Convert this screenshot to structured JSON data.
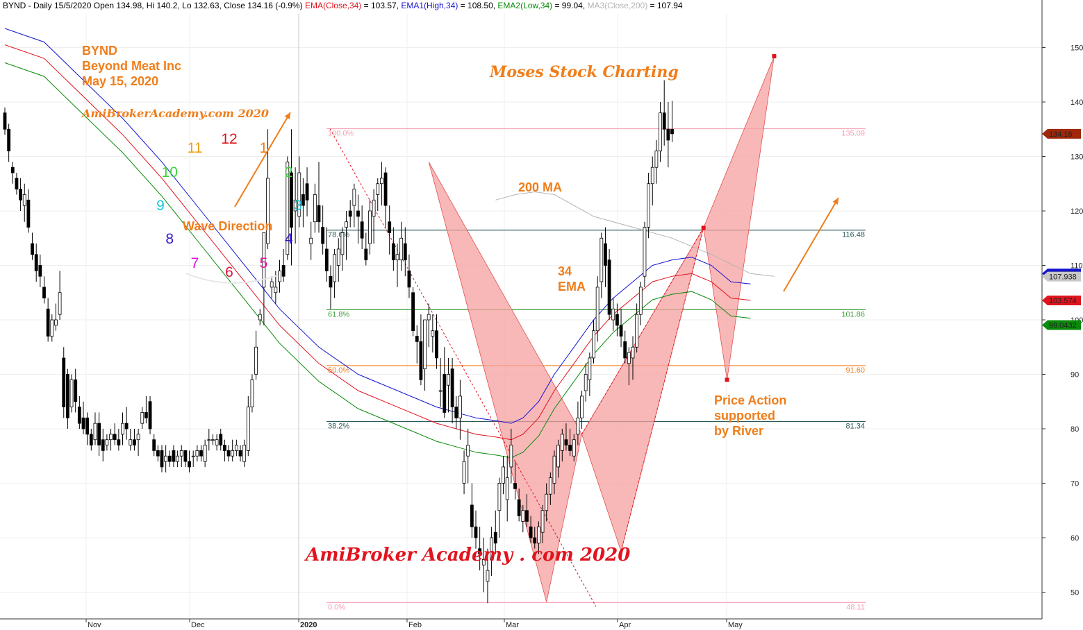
{
  "header": {
    "parts": [
      {
        "text": "BYND - Daily 15/5/2020 Open 134.98, Hi 140.2, Lo 132.63, Close 134.16 (-0.9%) ",
        "color": "#000000"
      },
      {
        "text": "EMA(Close,34)",
        "color": "#e0141e"
      },
      {
        "text": " = 103.57, ",
        "color": "#000000"
      },
      {
        "text": "EMA1(High,34)",
        "color": "#1414d2"
      },
      {
        "text": " = 108.50, ",
        "color": "#000000"
      },
      {
        "text": "EMA2(Low,34)",
        "color": "#0a8a0a"
      },
      {
        "text": " = 99.04, ",
        "color": "#000000"
      },
      {
        "text": "MA3(Close,200)",
        "color": "#b4b4b4"
      },
      {
        "text": " = 107.94",
        "color": "#000000"
      }
    ]
  },
  "annotations": {
    "ticker": "BYND",
    "company": "Beyond Meat Inc",
    "date": "May 15, 2020",
    "watermark_top": "AmiBrokerAcademy.com 2020",
    "brand": "Moses Stock Charting",
    "ma200": "200 MA",
    "ema34_line1": "34",
    "ema34_line2": "EMA",
    "wave_direction": "Wave Direction",
    "price_action_1": "Price Action",
    "price_action_2": "supported",
    "price_action_3": "by River",
    "watermark_bottom": "AmiBroker Academy . com  2020"
  },
  "clock": {
    "numbers": [
      {
        "n": "12",
        "color": "#e0141e"
      },
      {
        "n": "1",
        "color": "#f07d1a"
      },
      {
        "n": "2",
        "color": "#3cd23c"
      },
      {
        "n": "3",
        "color": "#14c8dc"
      },
      {
        "n": "4",
        "color": "#3214c8"
      },
      {
        "n": "5",
        "color": "#e614a0"
      },
      {
        "n": "6",
        "color": "#e0143c"
      },
      {
        "n": "7",
        "color": "#dc14dc"
      },
      {
        "n": "8",
        "color": "#3214c8"
      },
      {
        "n": "9",
        "color": "#14c8dc"
      },
      {
        "n": "10",
        "color": "#3cd23c"
      },
      {
        "n": "11",
        "color": "#f0a014"
      }
    ]
  },
  "colors": {
    "ema_close": "#e0141e",
    "ema_high": "#1414d2",
    "ema_low": "#0a8a0a",
    "ma200": "#b4b4b4",
    "pattern_fill": "#f5a0a0",
    "annotation": "#f07d1a",
    "candle_up": "#ffffff",
    "candle_down": "#000000",
    "fib_pink": "#f5a0b4",
    "fib_orange": "#f07d1a",
    "fib_green": "#3ca03c",
    "fib_teal": "#2d5a5a"
  },
  "chart_data": {
    "type": "candlestick",
    "title": "BYND - Daily 15/5/2020",
    "ylim": [
      45,
      155
    ],
    "y_ticks": [
      50,
      60,
      70,
      80,
      90,
      100,
      110,
      120,
      130,
      140,
      150
    ],
    "x_ticks": [
      "Nov",
      "Dec",
      "2020",
      "Feb",
      "Mar",
      "Apr",
      "May"
    ],
    "price_tags": [
      {
        "label": "134.16",
        "value": 134.16,
        "bg": "#a0280a",
        "fg": "#ffffff"
      },
      {
        "label": "108.502",
        "value": 108.502,
        "bg": "#1414d2",
        "fg": "#ffffff"
      },
      {
        "label": "107.938",
        "value": 107.938,
        "bg": "#c8c8c8",
        "fg": "#000000"
      },
      {
        "label": "103.574",
        "value": 103.574,
        "bg": "#e0141e",
        "fg": "#000000"
      },
      {
        "label": "99.0432",
        "value": 99.0432,
        "bg": "#0a8a0a",
        "fg": "#ffffff"
      }
    ],
    "fib_levels": [
      {
        "pct": "100.0%",
        "value": 135.09,
        "label": "135.09",
        "color": "#f5a0b4"
      },
      {
        "pct": "78.6%",
        "value": 116.48,
        "label": "116.48",
        "color": "#2d5a5a"
      },
      {
        "pct": "61.8%",
        "value": 101.86,
        "label": "101.86",
        "color": "#3ca03c"
      },
      {
        "pct": "50.0%",
        "value": 91.6,
        "label": "91.60",
        "color": "#f07d1a"
      },
      {
        "pct": "38.2%",
        "value": 81.34,
        "label": "81.34",
        "color": "#2d5a5a"
      },
      {
        "pct": "0.0%",
        "value": 48.11,
        "label": "48.11",
        "color": "#f5a0b4"
      }
    ],
    "pattern_points": [
      {
        "bar": 108,
        "price": 129
      },
      {
        "bar": 138,
        "price": 48.2
      },
      {
        "bar": 147,
        "price": 79
      },
      {
        "bar": 157,
        "price": 57.5
      },
      {
        "bar": 178,
        "price": 116.9
      },
      {
        "bar": 184,
        "price": 89
      },
      {
        "bar": 196,
        "price": 148.4
      }
    ],
    "candles": [
      [
        138,
        139,
        134,
        135
      ],
      [
        135,
        136,
        129,
        131
      ],
      [
        128,
        129,
        125,
        127
      ],
      [
        126,
        127,
        123,
        124
      ],
      [
        124,
        126,
        120,
        122
      ],
      [
        121,
        125,
        118,
        123
      ],
      [
        122,
        124,
        116,
        117
      ],
      [
        114,
        116,
        111,
        112
      ],
      [
        112,
        114,
        107,
        109
      ],
      [
        110,
        112,
        106,
        108
      ],
      [
        106,
        108,
        103,
        104
      ],
      [
        102,
        104,
        96,
        97
      ],
      [
        97,
        101,
        96,
        100
      ],
      [
        99,
        103,
        98,
        100
      ],
      [
        101,
        109,
        100,
        105
      ],
      [
        93,
        95,
        82,
        84
      ],
      [
        90,
        91,
        80,
        82
      ],
      [
        84,
        90,
        83,
        89
      ],
      [
        89,
        91,
        83,
        85
      ],
      [
        84,
        86,
        80,
        81
      ],
      [
        82,
        85,
        79,
        80
      ],
      [
        82,
        83,
        77,
        79
      ],
      [
        79,
        80,
        76,
        77
      ],
      [
        78,
        83,
        77,
        81
      ],
      [
        81,
        83,
        75,
        77
      ],
      [
        78,
        80,
        74,
        76
      ],
      [
        77,
        79,
        76,
        78
      ],
      [
        78,
        80,
        76,
        79
      ],
      [
        79,
        81,
        77,
        78
      ],
      [
        78,
        80,
        76,
        77
      ],
      [
        79,
        83,
        77,
        81
      ],
      [
        81,
        84,
        78,
        80
      ],
      [
        77,
        80,
        76,
        78
      ],
      [
        78,
        80,
        76,
        77
      ],
      [
        78,
        80,
        75,
        79
      ],
      [
        81,
        84,
        80,
        83
      ],
      [
        83,
        86,
        81,
        82
      ],
      [
        85,
        86,
        79,
        80
      ],
      [
        78,
        79,
        75,
        76
      ],
      [
        76,
        77,
        74,
        75
      ],
      [
        76,
        77,
        72,
        73
      ],
      [
        74,
        77,
        72,
        75
      ],
      [
        75,
        76,
        73,
        74
      ],
      [
        76,
        77,
        73,
        74
      ],
      [
        74,
        76,
        73,
        75
      ],
      [
        75,
        77,
        73,
        76
      ],
      [
        76,
        76,
        73,
        74
      ],
      [
        74,
        76,
        72,
        73
      ],
      [
        75,
        76,
        73,
        75
      ],
      [
        75,
        77,
        74,
        76
      ],
      [
        76,
        77,
        74,
        75
      ],
      [
        74,
        78,
        73,
        77
      ],
      [
        78,
        80,
        76,
        78
      ],
      [
        78,
        79,
        77,
        78
      ],
      [
        77,
        79,
        76,
        78
      ],
      [
        79,
        80,
        76,
        77
      ],
      [
        77,
        78,
        74,
        76
      ],
      [
        76,
        77,
        74,
        75
      ],
      [
        75,
        78,
        74,
        76
      ],
      [
        76,
        78,
        75,
        77
      ],
      [
        76,
        77,
        74,
        75
      ],
      [
        74,
        78,
        73,
        77
      ],
      [
        76,
        86,
        75,
        84
      ],
      [
        84,
        90,
        83,
        89
      ],
      [
        90,
        98,
        89,
        95
      ],
      [
        100,
        102,
        99,
        101
      ],
      [
        106,
        115,
        99,
        116
      ],
      [
        114,
        135,
        113,
        126
      ],
      [
        106,
        108,
        104,
        107
      ],
      [
        105,
        109,
        103,
        106
      ],
      [
        107,
        111,
        105,
        109
      ],
      [
        110,
        113,
        107,
        108
      ],
      [
        112,
        130,
        111,
        129
      ],
      [
        127,
        135,
        110,
        117
      ],
      [
        120,
        128,
        114,
        122
      ],
      [
        119,
        130,
        117,
        127
      ],
      [
        123,
        126,
        117,
        121
      ],
      [
        125,
        128,
        119,
        122
      ],
      [
        114,
        118,
        111,
        115
      ],
      [
        118,
        125,
        116,
        123
      ],
      [
        121,
        129,
        116,
        118
      ],
      [
        117,
        121,
        112,
        114
      ],
      [
        113,
        117,
        107,
        109
      ],
      [
        108,
        110,
        102,
        106
      ],
      [
        107,
        113,
        104,
        112
      ],
      [
        110,
        115,
        107,
        113
      ],
      [
        112,
        117,
        109,
        116
      ],
      [
        117,
        120,
        111,
        118
      ],
      [
        120,
        122,
        117,
        119
      ],
      [
        121,
        125,
        117,
        124
      ],
      [
        120,
        123,
        114,
        119
      ],
      [
        118,
        121,
        113,
        115
      ],
      [
        113,
        116,
        110,
        111
      ],
      [
        114,
        122,
        112,
        120
      ],
      [
        119,
        124,
        114,
        122
      ],
      [
        123,
        126,
        120,
        125
      ],
      [
        125,
        129,
        121,
        126
      ],
      [
        127,
        128,
        117,
        121
      ],
      [
        118,
        121,
        112,
        116
      ],
      [
        114,
        117,
        109,
        111
      ],
      [
        111,
        114,
        106,
        112
      ],
      [
        111,
        118,
        109,
        115
      ],
      [
        114,
        117,
        108,
        111
      ],
      [
        109,
        112,
        104,
        106
      ],
      [
        105,
        106,
        97,
        98
      ],
      [
        97,
        99,
        92,
        96
      ],
      [
        96,
        101,
        88,
        89
      ],
      [
        91,
        99,
        87,
        100
      ],
      [
        100,
        103,
        95,
        101
      ],
      [
        97,
        101,
        94,
        98
      ],
      [
        98,
        101,
        91,
        93
      ],
      [
        87,
        93,
        84,
        87
      ],
      [
        90,
        95,
        82,
        83
      ],
      [
        88,
        93,
        83,
        90
      ],
      [
        91,
        93,
        81,
        84
      ],
      [
        84,
        86,
        80,
        82
      ],
      [
        82,
        89,
        78,
        86
      ],
      [
        70,
        76,
        68,
        74
      ],
      [
        75,
        80,
        70,
        77
      ],
      [
        66,
        70,
        60,
        62
      ],
      [
        62,
        65,
        58,
        60
      ],
      [
        58,
        62,
        54,
        57
      ],
      [
        55,
        60,
        50,
        56
      ],
      [
        52,
        58,
        48,
        54
      ],
      [
        56,
        62,
        53,
        60
      ],
      [
        61,
        65,
        57,
        59
      ],
      [
        65,
        71,
        60,
        70
      ],
      [
        70,
        75,
        68,
        73
      ],
      [
        67,
        75,
        63,
        71
      ],
      [
        73,
        80,
        70,
        77
      ],
      [
        70,
        74,
        67,
        69
      ],
      [
        67,
        69,
        63,
        64
      ],
      [
        63,
        66,
        61,
        65
      ],
      [
        65,
        68,
        62,
        63
      ],
      [
        62,
        64,
        59,
        60
      ],
      [
        60,
        62,
        58,
        59
      ],
      [
        59,
        63,
        57,
        62
      ],
      [
        61,
        66,
        59,
        65
      ],
      [
        65,
        70,
        63,
        68
      ],
      [
        68,
        72,
        66,
        71
      ],
      [
        70,
        76,
        68,
        75
      ],
      [
        73,
        78,
        71,
        77
      ],
      [
        76,
        80,
        74,
        79
      ],
      [
        78,
        81,
        76,
        77
      ],
      [
        77,
        80,
        75,
        76
      ],
      [
        75,
        79,
        74,
        78
      ],
      [
        79,
        85,
        77,
        82
      ],
      [
        82,
        87,
        80,
        86
      ],
      [
        87,
        92,
        85,
        90
      ],
      [
        89,
        94,
        86,
        93
      ],
      [
        93,
        100,
        92,
        98
      ],
      [
        98,
        108,
        96,
        106
      ],
      [
        107,
        116,
        104,
        115
      ],
      [
        114,
        117,
        106,
        110
      ],
      [
        111,
        113,
        100,
        101
      ],
      [
        100,
        104,
        98,
        102
      ],
      [
        101,
        103,
        97,
        99
      ],
      [
        99,
        102,
        95,
        97
      ],
      [
        96,
        98,
        92,
        93
      ],
      [
        92,
        95,
        88,
        94
      ],
      [
        93,
        97,
        89,
        95
      ],
      [
        95,
        103,
        94,
        101
      ],
      [
        101,
        107,
        99,
        106
      ],
      [
        108,
        118,
        106,
        117
      ],
      [
        117,
        127,
        115,
        125
      ],
      [
        125,
        130,
        121,
        128
      ],
      [
        128,
        133,
        125,
        131
      ],
      [
        131,
        140,
        129,
        138
      ],
      [
        138,
        144,
        132,
        135
      ],
      [
        135,
        140,
        128,
        133
      ],
      [
        134.98,
        140.2,
        132.63,
        134.16
      ]
    ],
    "ema_close": [
      [
        0,
        150.5
      ],
      [
        10,
        148
      ],
      [
        20,
        141
      ],
      [
        30,
        134
      ],
      [
        40,
        126
      ],
      [
        50,
        117
      ],
      [
        60,
        108
      ],
      [
        70,
        99
      ],
      [
        80,
        92
      ],
      [
        90,
        87
      ],
      [
        100,
        84
      ],
      [
        110,
        81
      ],
      [
        120,
        79
      ],
      [
        125,
        78.5
      ],
      [
        129,
        78
      ],
      [
        132,
        79
      ],
      [
        136,
        82
      ],
      [
        140,
        87
      ],
      [
        145,
        92
      ],
      [
        150,
        97
      ],
      [
        155,
        101
      ],
      [
        160,
        104
      ],
      [
        165,
        107
      ],
      [
        170,
        108
      ],
      [
        175,
        108.5
      ],
      [
        180,
        107
      ],
      [
        185,
        104
      ],
      [
        190,
        103.6
      ]
    ]
  }
}
